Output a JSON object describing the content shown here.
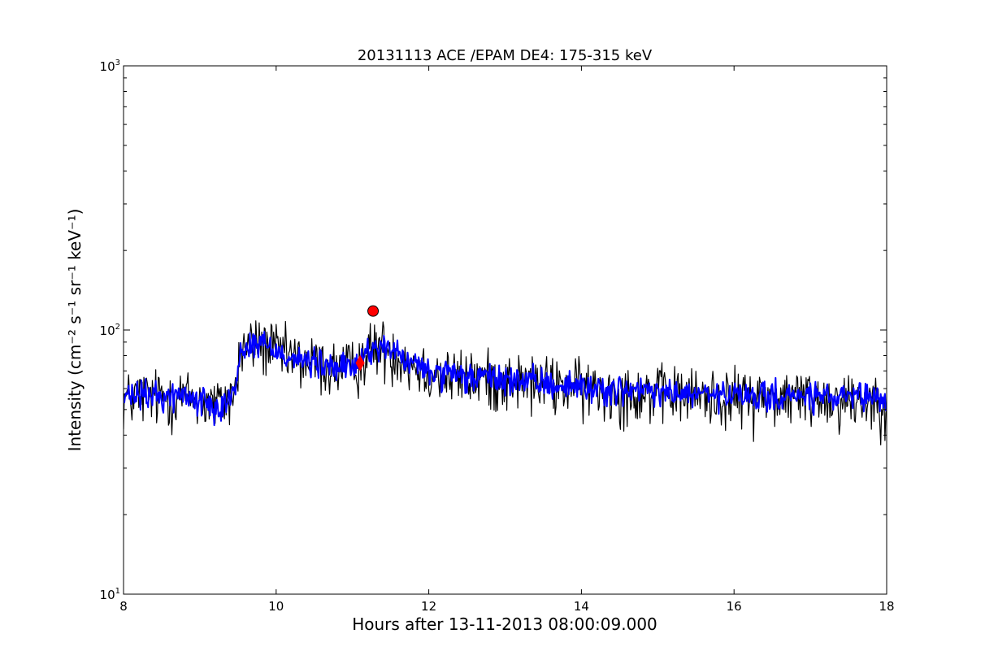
{
  "chart_data": {
    "type": "line",
    "title": "20131113 ACE /EPAM DE4: 175-315 keV",
    "xlabel": "Hours after 13-11-2013 08:00:09.000",
    "ylabel": "Intensity (cm⁻² s⁻¹ sr⁻¹ keV⁻¹)",
    "xlim": [
      8,
      18
    ],
    "ylim": [
      10,
      1000
    ],
    "yscale": "log",
    "grid": false,
    "x_ticks": [
      8,
      10,
      12,
      14,
      16,
      18
    ],
    "x_tick_labels": [
      "8",
      "10",
      "12",
      "14",
      "16",
      "18"
    ],
    "y_ticks": [
      10,
      100,
      1000
    ],
    "y_tick_labels": [
      "10",
      "10",
      "10"
    ],
    "y_tick_exponents": [
      "1",
      "2",
      "3"
    ],
    "series": [
      {
        "color": "#000000",
        "style": "line",
        "x": [
          8.0,
          8.25,
          8.5,
          8.75,
          9.0,
          9.25,
          9.45,
          9.55,
          9.75,
          9.85,
          10.0,
          10.25,
          10.5,
          10.75,
          11.0,
          11.25,
          11.35,
          11.5,
          11.75,
          12.0,
          12.25,
          12.5,
          12.75,
          13.0,
          13.5,
          14.0,
          14.5,
          15.0,
          15.5,
          16.0,
          16.5,
          17.0,
          17.5,
          18.0
        ],
        "y": [
          55,
          57,
          56,
          57,
          54,
          52,
          57,
          85,
          90,
          88,
          84,
          78,
          75,
          72,
          72,
          85,
          88,
          84,
          75,
          70,
          67,
          66,
          66,
          65,
          63,
          61,
          59,
          58,
          57,
          56,
          56,
          56,
          55,
          55
        ],
        "scatter_pct": 0.24
      },
      {
        "color": "#0000ff",
        "style": "line",
        "x": [
          8.0,
          8.25,
          8.5,
          8.75,
          9.0,
          9.25,
          9.45,
          9.55,
          9.75,
          9.85,
          10.0,
          10.25,
          10.5,
          10.75,
          11.0,
          11.25,
          11.35,
          11.5,
          11.75,
          12.0,
          12.25,
          12.5,
          12.75,
          13.0,
          13.5,
          14.0,
          14.5,
          15.0,
          15.5,
          16.0,
          16.5,
          17.0,
          17.5,
          18.0
        ],
        "y": [
          55,
          57,
          56,
          57,
          54,
          52,
          57,
          85,
          90,
          88,
          84,
          78,
          75,
          72,
          72,
          85,
          88,
          84,
          75,
          70,
          67,
          66,
          66,
          65,
          63,
          61,
          59,
          58,
          57,
          56,
          56,
          56,
          55,
          55
        ],
        "scatter_pct": 0.12
      }
    ],
    "markers": [
      {
        "shape": "circle",
        "x": 11.27,
        "y": 118,
        "color": "#ff0000"
      },
      {
        "shape": "diamond",
        "x": 11.1,
        "y": 75,
        "color": "#ff0000"
      }
    ]
  }
}
